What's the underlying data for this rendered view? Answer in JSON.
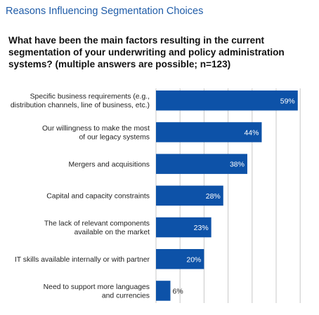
{
  "header": {
    "title": "Reasons Influencing Segmentation Choices",
    "question": "What have been the main factors resulting in the current segmentation of your underwriting and policy administration systems? (multiple answers are possible; n=123)"
  },
  "colors": {
    "bar": "#0d52a8",
    "grid": "#c8c8c8",
    "title": "#1f5ca8"
  },
  "chart_data": {
    "type": "bar",
    "orientation": "horizontal",
    "title": "",
    "xlabel": "",
    "ylabel": "",
    "xlim": [
      0,
      70
    ],
    "grid": true,
    "categories": [
      [
        "Specific business requirements (e.g.,",
        "distribution channels, line of business, etc.)"
      ],
      [
        "Our willingness to make the most",
        "of our legacy systems"
      ],
      [
        "Mergers and acquisitions"
      ],
      [
        "Capital and capacity constraints"
      ],
      [
        "The lack of relevant components",
        "available on the market"
      ],
      [
        "IT skills available internally or with partner"
      ],
      [
        "Need to support more languages",
        "and currencies"
      ]
    ],
    "values": [
      59,
      44,
      38,
      28,
      23,
      20,
      6
    ],
    "value_labels": [
      "59%",
      "44%",
      "38%",
      "28%",
      "23%",
      "20%",
      "6%"
    ]
  }
}
